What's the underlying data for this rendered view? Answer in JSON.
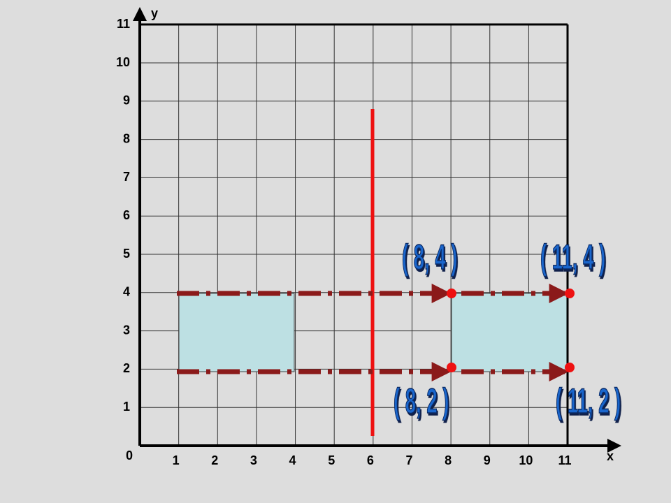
{
  "axes": {
    "x_label": "x",
    "y_label": "y",
    "origin": "0",
    "x_ticks": [
      "1",
      "2",
      "3",
      "4",
      "5",
      "6",
      "7",
      "8",
      "9",
      "10",
      "11"
    ],
    "y_ticks": [
      "1",
      "2",
      "3",
      "4",
      "5",
      "6",
      "7",
      "8",
      "9",
      "10",
      "11"
    ]
  },
  "points": [
    {
      "label": "( 8, 4 )"
    },
    {
      "label": "( 11, 4 )"
    },
    {
      "label": "( 8, 2 )"
    },
    {
      "label": "( 11, 2 )"
    }
  ]
}
